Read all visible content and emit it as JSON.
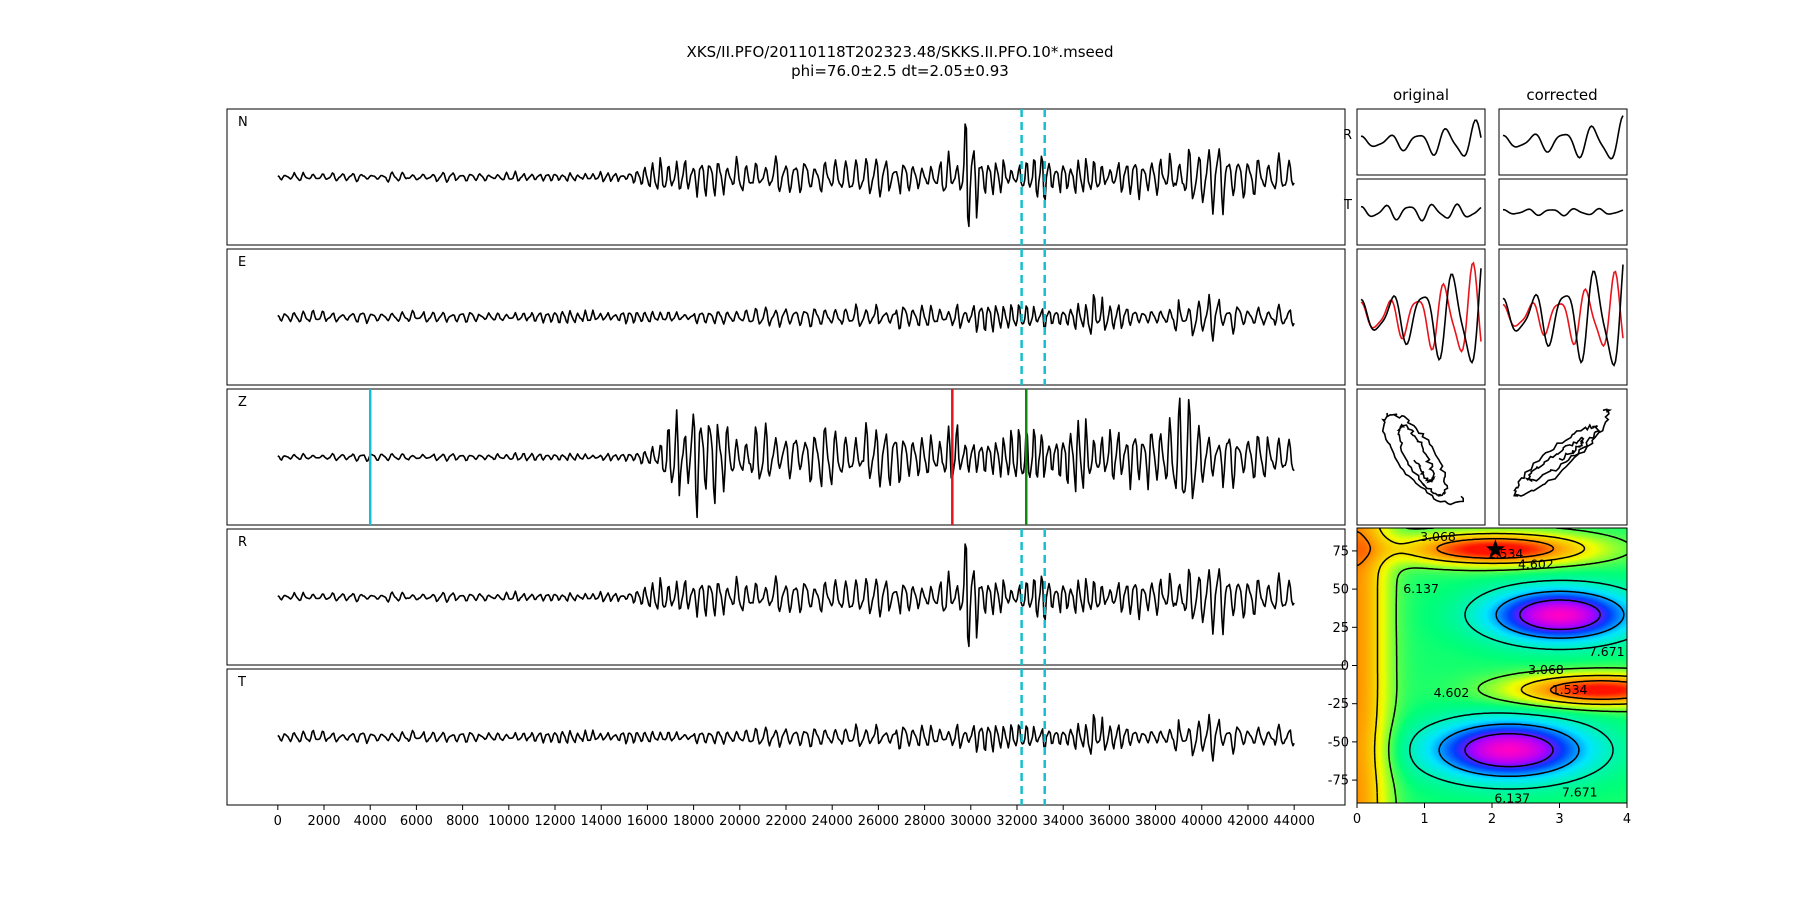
{
  "figure": {
    "title_line1": "XKS/II.PFO/20110118T202323.48/SKKS.II.PFO.10*.mseed",
    "title_line2": "phi=76.0±2.5 dt=2.05±0.93"
  },
  "chart_data": [
    {
      "type": "line",
      "name": "seismograms",
      "panels": [
        "N",
        "E",
        "Z",
        "R",
        "T"
      ],
      "x_range": [
        0,
        44000
      ],
      "xlim": [
        -2200,
        46200
      ],
      "x_ticks": [
        0,
        2000,
        4000,
        6000,
        8000,
        10000,
        12000,
        14000,
        16000,
        18000,
        20000,
        22000,
        24000,
        26000,
        28000,
        30000,
        32000,
        34000,
        36000,
        38000,
        40000,
        42000,
        44000
      ],
      "window_lines": {
        "color": "#17becf",
        "style": "dashed",
        "x": [
          32200,
          33200
        ],
        "panels": [
          "N",
          "E",
          "R",
          "T"
        ]
      },
      "z_markers": [
        {
          "x": 4000,
          "color": "#17becf"
        },
        {
          "x": 29200,
          "color": "#e8141c"
        },
        {
          "x": 32400,
          "color": "#118811"
        }
      ]
    },
    {
      "type": "line",
      "name": "particle-motion",
      "columns": [
        "original",
        "corrected"
      ],
      "row_labels": [
        "R",
        "T"
      ],
      "series_colors": [
        "#000000",
        "#e8141c"
      ]
    },
    {
      "type": "heatmap",
      "name": "error-surface",
      "x_ticks": [
        0,
        1,
        2,
        3,
        4
      ],
      "y_ticks": [
        75,
        50,
        25,
        0,
        -25,
        -50,
        -75
      ],
      "xlim": [
        0,
        4
      ],
      "ylim": [
        -90,
        90
      ],
      "contour_labels": [
        {
          "text": "3.068",
          "x": 1.2,
          "y": 84
        },
        {
          "text": "1.534",
          "x": 2.2,
          "y": 73
        },
        {
          "text": "4.602",
          "x": 2.65,
          "y": 66
        },
        {
          "text": "6.137",
          "x": 0.95,
          "y": 50
        },
        {
          "text": "7.671",
          "x": 3.7,
          "y": 9
        },
        {
          "text": "3.068",
          "x": 2.8,
          "y": -3
        },
        {
          "text": "1.534",
          "x": 3.15,
          "y": -16
        },
        {
          "text": "4.602",
          "x": 1.4,
          "y": -18
        },
        {
          "text": "7.671",
          "x": 3.3,
          "y": -83
        },
        {
          "text": "6.137",
          "x": 2.3,
          "y": -87
        }
      ],
      "best_fit": {
        "x": 2.05,
        "y": 76,
        "marker": "star"
      }
    }
  ]
}
